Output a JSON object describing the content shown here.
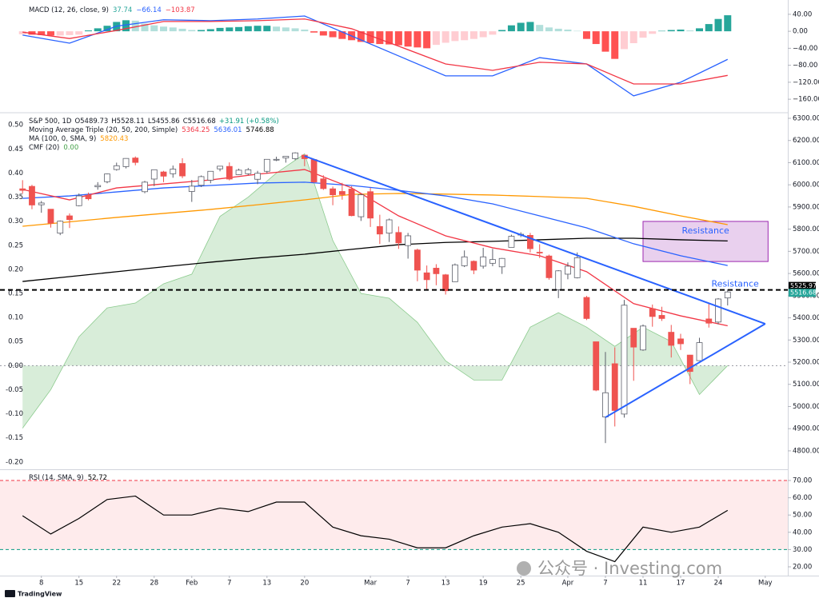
{
  "chart_data": [
    {
      "type": "bar",
      "title": "MACD (12, 26, close, 9)",
      "legend_values": [
        {
          "text": "37.74",
          "color": "#26a69a"
        },
        {
          "text": "−66.14",
          "color": "#2962ff"
        },
        {
          "text": "−103.87",
          "color": "#f23645"
        }
      ],
      "values": [
        -7,
        -8,
        -9,
        -10,
        -10,
        -9,
        -8,
        2,
        7,
        13,
        22,
        26,
        25,
        18,
        14,
        11,
        9,
        6,
        3,
        3,
        5,
        8,
        9,
        10,
        12,
        13,
        13,
        11,
        9,
        7,
        4,
        -3,
        -10,
        -14,
        -18,
        -21,
        -25,
        -28,
        -30,
        -31,
        -33,
        -36,
        -38,
        -40,
        -32,
        -27,
        -23,
        -21,
        -18,
        -14,
        -8,
        3,
        14,
        20,
        22,
        15,
        9,
        6,
        4,
        1,
        -18,
        -30,
        -48,
        -65,
        -42,
        -28,
        -15,
        -6,
        1,
        3,
        4,
        2,
        7,
        17,
        29,
        37.74
      ],
      "colors": [
        "#26a69a",
        "#b2dfdb",
        "#ff5252",
        "#ffcdd2"
      ],
      "lines": [
        {
          "color": "#2962ff",
          "x": [
            0,
            5,
            10,
            15,
            20,
            25,
            30,
            35,
            40,
            45,
            50,
            55,
            60,
            65,
            70,
            75
          ],
          "values": [
            -9,
            -28,
            12,
            27,
            25,
            29,
            36,
            -11,
            -58,
            -105,
            -105,
            -62,
            -77,
            -152,
            -120,
            -66.14
          ]
        },
        {
          "color": "#f23645",
          "x": [
            0,
            5,
            10,
            15,
            20,
            25,
            30,
            35,
            40,
            45,
            50,
            55,
            60,
            65,
            70,
            75
          ],
          "values": [
            -2,
            -17,
            2,
            23,
            23,
            25,
            29,
            6,
            -35,
            -77,
            -92,
            -73,
            -77,
            -124,
            -124,
            -103.87
          ]
        }
      ],
      "xlim": [
        -2.4,
        81.4
      ],
      "ylim": [
        -188,
        68
      ],
      "yticks": [
        {
          "value": 40,
          "label": "40.00"
        },
        {
          "value": 0,
          "label": "0.00"
        },
        {
          "value": -40,
          "label": "−40.00"
        },
        {
          "value": -80,
          "label": "−80.00"
        },
        {
          "value": -120,
          "label": "−120.00"
        },
        {
          "value": -160,
          "label": "−160.00"
        }
      ]
    },
    {
      "type": "candlestick",
      "title": "S&P 500, 1D",
      "ohlc_labels": [
        "O5489.73",
        "H5528.11",
        "L5455.86",
        "C5516.68",
        "+31.91 (+0.58%)"
      ],
      "legend": [
        {
          "text": "Moving Average Triple (20, 50, 200, Simple)",
          "values": [
            {
              "text": "5364.25",
              "color": "#f23645"
            },
            {
              "text": "5636.01",
              "color": "#2962ff"
            },
            {
              "text": "5746.88",
              "color": "#000000"
            }
          ]
        },
        {
          "text": "MA (100, 0, SMA, 9)",
          "values": [
            {
              "text": "5820.43",
              "color": "#ff9800"
            }
          ]
        },
        {
          "text": "CMF (20)",
          "values": [
            {
              "text": "0.00",
              "color": "#43a047"
            }
          ]
        }
      ],
      "open": [
        5982,
        5993,
        5910,
        5890,
        5782,
        5860,
        5906,
        5953,
        5991,
        6014,
        6069,
        6082,
        6121,
        5969,
        6026,
        6058,
        6050,
        6096,
        5970,
        5998,
        6021,
        6072,
        6083,
        6046,
        6050,
        6025,
        6061,
        6115,
        6121,
        6118,
        6134,
        6114,
        6027,
        5982,
        5970,
        5981,
        5856,
        5969,
        5812,
        5782,
        5785,
        5726,
        5706,
        5603,
        5624,
        5594,
        5563,
        5635,
        5655,
        5633,
        5646,
        5630,
        5718,
        5775,
        5772,
        5696,
        5679,
        5527,
        5597,
        5581,
        5492,
        5292,
        4953,
        5193,
        4966,
        5353,
        5255,
        5441,
        5411,
        5335,
        5305,
        5232,
        5207,
        5395,
        5381,
        5489.73
      ],
      "high": [
        6021,
        6000,
        5927,
        5890,
        5839,
        5871,
        5961,
        5965,
        6012,
        6051,
        6100,
        6120,
        6128,
        6018,
        6069,
        6063,
        6087,
        6120,
        6022,
        6042,
        6062,
        6084,
        6101,
        6073,
        6076,
        6063,
        6116,
        6127,
        6129,
        6147,
        6134,
        6115,
        6043,
        5992,
        6009,
        5994,
        5959,
        5987,
        5865,
        5848,
        5812,
        5783,
        5712,
        5636,
        5642,
        5598,
        5645,
        5704,
        5659,
        5716,
        5711,
        5670,
        5775,
        5786,
        5783,
        5732,
        5685,
        5615,
        5650,
        5695,
        5499,
        5292,
        5246,
        5267,
        5481,
        5353,
        5370,
        5460,
        5450,
        5368,
        5328,
        5233,
        5310,
        5469,
        5489,
        5528.11
      ],
      "low": [
        5960,
        5890,
        5874,
        5807,
        5773,
        5805,
        5903,
        5930,
        5978,
        6007,
        6064,
        6074,
        6088,
        5962,
        5994,
        6012,
        6032,
        6030,
        5923,
        5990,
        6007,
        6061,
        6020,
        6045,
        6044,
        6003,
        6051,
        6107,
        6100,
        6111,
        6084,
        6009,
        5977,
        5908,
        5933,
        5858,
        5837,
        5810,
        5733,
        5742,
        5711,
        5667,
        5565,
        5529,
        5547,
        5505,
        5563,
        5629,
        5597,
        5622,
        5633,
        5598,
        5718,
        5764,
        5695,
        5670,
        5572,
        5489,
        5574,
        5578,
        5390,
        5069,
        4835,
        4910,
        4950,
        5116,
        5251,
        5360,
        5386,
        5221,
        5255,
        5101,
        5207,
        5356,
        5371,
        5455.86
      ],
      "close": [
        5975,
        5909,
        5918,
        5827,
        5836,
        5843,
        5950,
        5937,
        5997,
        6049,
        6086,
        6119,
        6101,
        6012,
        6068,
        6039,
        6071,
        6040,
        5994,
        6037,
        6061,
        6084,
        6026,
        6066,
        6068,
        6052,
        6115,
        6115,
        6129,
        6144,
        6118,
        6013,
        5983,
        5955,
        5956,
        5861,
        5955,
        5850,
        5778,
        5842,
        5738,
        5770,
        5615,
        5572,
        5599,
        5522,
        5639,
        5675,
        5615,
        5675,
        5663,
        5668,
        5768,
        5777,
        5712,
        5693,
        5581,
        5612,
        5633,
        5671,
        5397,
        5074,
        5062,
        4982,
        5457,
        5268,
        5363,
        5406,
        5397,
        5276,
        5283,
        5158,
        5288,
        5376,
        5485,
        5516.68
      ],
      "up_color": "#ffffff",
      "up_border": "#5d606b",
      "down_color": "#ef5350",
      "lines": [
        {
          "color": "#ff9800",
          "x": [
            0,
            5,
            10,
            15,
            20,
            25,
            30,
            35,
            40,
            45,
            50,
            55,
            60,
            65,
            70,
            75
          ],
          "values": [
            5813,
            5833,
            5853,
            5871,
            5889,
            5910,
            5932,
            5957,
            5961,
            5958,
            5954,
            5947,
            5939,
            5903,
            5860,
            5820.43
          ]
        },
        {
          "color": "#000000",
          "x": [
            0,
            5,
            10,
            15,
            20,
            25,
            30,
            35,
            40,
            45,
            50,
            55,
            60,
            65,
            70,
            75
          ],
          "values": [
            5564,
            5586,
            5608,
            5630,
            5651,
            5670,
            5687,
            5709,
            5730,
            5740,
            5745,
            5752,
            5759,
            5759,
            5752,
            5746.88
          ]
        },
        {
          "color": "#2962ff",
          "x": [
            0,
            5,
            10,
            15,
            20,
            25,
            30,
            35,
            40,
            45,
            50,
            55,
            60,
            65,
            70,
            75
          ],
          "values": [
            5939,
            5950,
            5968,
            5986,
            5997,
            6008,
            6012,
            5997,
            5975,
            5950,
            5914,
            5860,
            5806,
            5734,
            5680,
            5636.01
          ]
        },
        {
          "color": "#f23645",
          "x": [
            0,
            5,
            10,
            15,
            20,
            25,
            30,
            35,
            40,
            45,
            50,
            55,
            60,
            65,
            70,
            75
          ],
          "values": [
            5979,
            5932,
            5986,
            6004,
            6022,
            6048,
            6069,
            5986,
            5860,
            5770,
            5716,
            5680,
            5608,
            5464,
            5409,
            5364.25
          ]
        }
      ],
      "area": {
        "color": "#4caf50",
        "axis": "y2",
        "x": [
          0,
          3,
          6,
          9,
          12,
          15,
          18,
          21,
          24,
          27,
          30,
          33,
          36,
          39,
          42,
          45,
          48,
          51,
          54,
          57,
          60,
          63,
          66,
          69,
          72,
          75
        ],
        "values": [
          -0.13,
          -0.05,
          0.06,
          0.12,
          0.13,
          0.17,
          0.19,
          0.31,
          0.35,
          0.4,
          0.44,
          0.26,
          0.15,
          0.14,
          0.09,
          0.01,
          -0.03,
          -0.03,
          0.08,
          0.11,
          0.08,
          0.04,
          0.08,
          0.05,
          -0.06,
          0.0
        ]
      },
      "trendlines": {
        "color": "#2962ff",
        "items": [
          {
            "x": [
              30,
              79
            ],
            "values": [
              6130,
              5373
            ]
          },
          {
            "x": [
              62,
              79
            ],
            "values": [
              4951,
              5373
            ]
          }
        ]
      },
      "zones": [
        {
          "x": [
            66,
            79.3
          ],
          "values": [
            5654,
            5835
          ],
          "label": "Resistance",
          "fill": "rgba(156,39,176,0.22)",
          "border": "#9c27b0",
          "text_color": "#2962ff"
        }
      ],
      "notes": [
        {
          "text": "Resistance",
          "x": 75.8,
          "value": 5552,
          "color": "#2962ff"
        }
      ],
      "hline": {
        "value": 5525.97,
        "label": "5525.97",
        "color": "#000000"
      },
      "last_price": {
        "value": 5516.68,
        "label": "5516.68",
        "color": "#26a69a"
      },
      "xlim": [
        -2.4,
        81.4
      ],
      "ylim": [
        4724,
        6318
      ],
      "yticks": [
        {
          "value": 4800,
          "label": "4800.00"
        },
        {
          "value": 4900,
          "label": "4900.00"
        },
        {
          "value": 5000,
          "label": "5000.00"
        },
        {
          "value": 5100,
          "label": "5100.00"
        },
        {
          "value": 5200,
          "label": "5200.00"
        },
        {
          "value": 5300,
          "label": "5300.00"
        },
        {
          "value": 5400,
          "label": "5400.00"
        },
        {
          "value": 5500,
          "label": "5500.00"
        },
        {
          "value": 5600,
          "label": "5600.00"
        },
        {
          "value": 5700,
          "label": "5700.00"
        },
        {
          "value": 5800,
          "label": "5800.00"
        },
        {
          "value": 5900,
          "label": "5900.00"
        },
        {
          "value": 6000,
          "label": "6000.00"
        },
        {
          "value": 6100,
          "label": "6100.00"
        },
        {
          "value": 6200,
          "label": "6200.00"
        },
        {
          "value": 6300,
          "label": "6300.00"
        }
      ],
      "y2lim": [
        -0.212,
        0.522
      ],
      "y2ticks": [
        {
          "value": 0.5,
          "label": "0.50"
        },
        {
          "value": 0.45,
          "label": "0.45"
        },
        {
          "value": 0.4,
          "label": "0.40"
        },
        {
          "value": 0.35,
          "label": "0.35"
        },
        {
          "value": 0.3,
          "label": "0.30"
        },
        {
          "value": 0.25,
          "label": "0.25"
        },
        {
          "value": 0.2,
          "label": "0.20"
        },
        {
          "value": 0.15,
          "label": "0.15"
        },
        {
          "value": 0.1,
          "label": "0.10"
        },
        {
          "value": 0.05,
          "label": "0.05"
        },
        {
          "value": 0,
          "label": "0.00"
        },
        {
          "value": -0.05,
          "label": "-0.05"
        },
        {
          "value": -0.1,
          "label": "-0.10"
        },
        {
          "value": -0.15,
          "label": "-0.15"
        },
        {
          "value": -0.2,
          "label": "-0.20"
        }
      ]
    },
    {
      "type": "line",
      "title": "RSI (14, SMA, 9)",
      "legend_values": [
        {
          "text": "52.72",
          "color": "#000000"
        }
      ],
      "x": [
        0,
        3,
        6,
        9,
        12,
        15,
        18,
        21,
        24,
        27,
        30,
        33,
        36,
        39,
        42,
        45,
        48,
        51,
        54,
        57,
        60,
        63,
        66,
        69,
        72,
        75
      ],
      "values": [
        49.6,
        39,
        48,
        59,
        61,
        50,
        50,
        54,
        52,
        57.5,
        57.5,
        43,
        38,
        36,
        31,
        31,
        38,
        43,
        45,
        40,
        29,
        23,
        43,
        40,
        43,
        52.72
      ],
      "color": "#000000",
      "bands": [
        70,
        30
      ],
      "band_colors": [
        "#f23645",
        "#089981"
      ],
      "band_fill": "rgba(242,54,69,0.1)",
      "xlim": [
        -2.4,
        81.4
      ],
      "ylim": [
        14.9,
        75.1
      ],
      "yticks": [
        {
          "value": 70,
          "label": "70.00"
        },
        {
          "value": 60,
          "label": "60.00"
        },
        {
          "value": 50,
          "label": "50.00"
        },
        {
          "value": 40,
          "label": "40.00"
        },
        {
          "value": 30,
          "label": "30.00"
        },
        {
          "value": 20,
          "label": "20.00"
        }
      ],
      "xticks": [
        {
          "value": 2,
          "label": "8"
        },
        {
          "value": 6,
          "label": "15"
        },
        {
          "value": 10,
          "label": "22"
        },
        {
          "value": 14,
          "label": "28"
        },
        {
          "value": 18,
          "label": "Feb"
        },
        {
          "value": 22,
          "label": "7"
        },
        {
          "value": 26,
          "label": "13"
        },
        {
          "value": 30,
          "label": "20"
        },
        {
          "value": 37,
          "label": "Mar"
        },
        {
          "value": 41,
          "label": "7"
        },
        {
          "value": 45,
          "label": "13"
        },
        {
          "value": 49,
          "label": "19"
        },
        {
          "value": 53,
          "label": "25"
        },
        {
          "value": 58,
          "label": "Apr"
        },
        {
          "value": 62,
          "label": "7"
        },
        {
          "value": 66,
          "label": "11"
        },
        {
          "value": 70,
          "label": "17"
        },
        {
          "value": 74,
          "label": "24"
        },
        {
          "value": 79,
          "label": "May"
        }
      ]
    }
  ],
  "watermark": "公众号 · Investing.com",
  "branding": "TradingView"
}
